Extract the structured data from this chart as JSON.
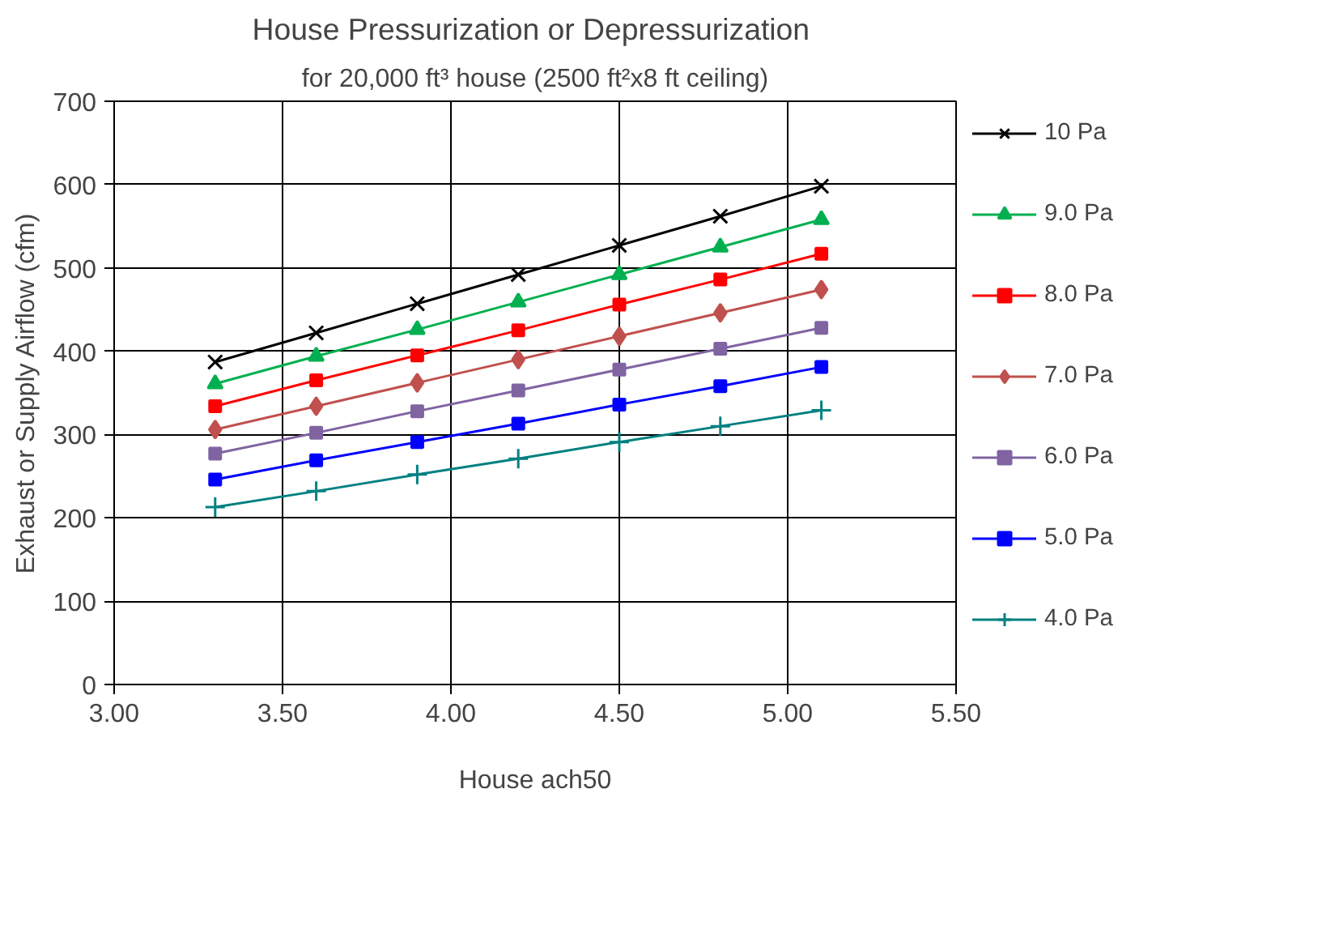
{
  "chart_data": {
    "type": "line",
    "title": "House Pressurization  or Depressurization",
    "subtitle": "for 20,000 ft³ house (2500 ft²x8 ft ceiling)",
    "xlabel": "House ach50",
    "ylabel": "Exhaust or Supply Airflow (cfm)",
    "x": [
      3.3,
      3.6,
      3.9,
      4.2,
      4.5,
      4.8,
      5.1
    ],
    "series": [
      {
        "name": "10 Pa",
        "color": "#000000",
        "marker": "x",
        "values": [
          387,
          422,
          457,
          492,
          527,
          562,
          598
        ]
      },
      {
        "name": "9.0 Pa",
        "color": "#00b050",
        "marker": "triangle",
        "values": [
          361,
          394,
          426,
          459,
          492,
          525,
          558
        ]
      },
      {
        "name": "8.0 Pa",
        "color": "#ff0000",
        "marker": "square",
        "values": [
          334,
          365,
          395,
          425,
          456,
          486,
          517
        ]
      },
      {
        "name": "7.0 Pa",
        "color": "#c0504d",
        "marker": "diamond",
        "values": [
          306,
          334,
          362,
          390,
          418,
          446,
          474
        ]
      },
      {
        "name": "6.0 Pa",
        "color": "#8064a2",
        "marker": "square",
        "values": [
          277,
          302,
          328,
          353,
          378,
          403,
          428
        ]
      },
      {
        "name": "5.0 Pa",
        "color": "#0000ff",
        "marker": "square",
        "values": [
          246,
          269,
          291,
          313,
          336,
          358,
          381
        ]
      },
      {
        "name": "4.0 Pa",
        "color": "#008080",
        "marker": "cross",
        "values": [
          213,
          232,
          252,
          271,
          291,
          310,
          329
        ]
      }
    ],
    "xlim": [
      3.0,
      5.5
    ],
    "ylim": [
      0,
      700
    ],
    "xticks": [
      {
        "value": 3.0,
        "label": "3.00"
      },
      {
        "value": 3.5,
        "label": "3.50"
      },
      {
        "value": 4.0,
        "label": "4.00"
      },
      {
        "value": 4.5,
        "label": "4.50"
      },
      {
        "value": 5.0,
        "label": "5.00"
      },
      {
        "value": 5.5,
        "label": "5.50"
      }
    ],
    "yticks": [
      0,
      100,
      200,
      300,
      400,
      500,
      600,
      700
    ],
    "grid": true,
    "legend": "right",
    "line_style": "solid"
  }
}
